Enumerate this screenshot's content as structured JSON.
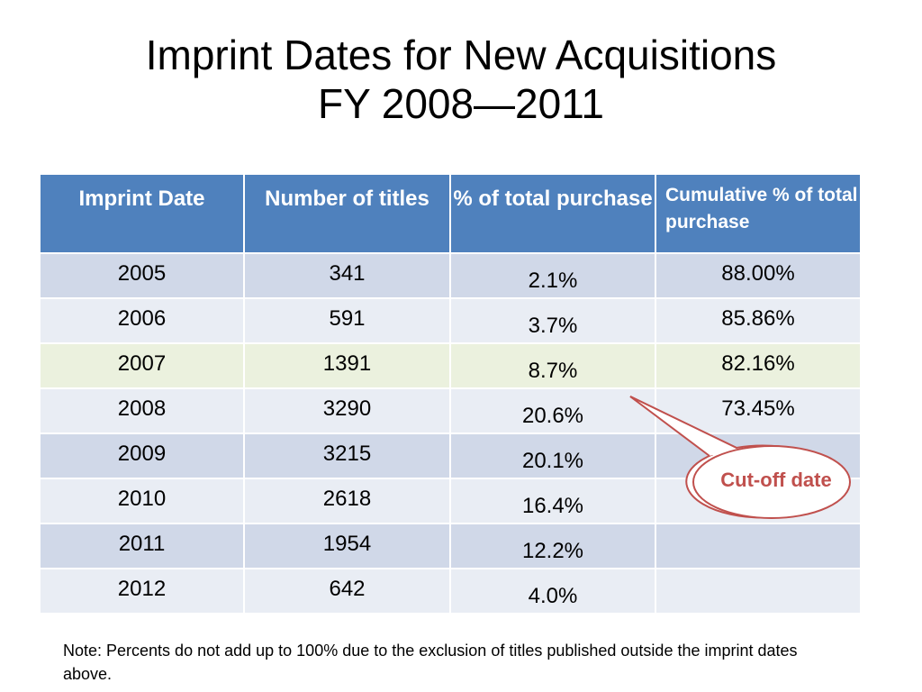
{
  "title": {
    "line1": "Imprint Dates for New Acquisitions",
    "line2": "FY 2008—2011"
  },
  "table": {
    "headers": {
      "imprint_date": "Imprint Date",
      "number_of_titles": "Number of titles",
      "pct_total": "% of total purchase",
      "cumulative": "Cumulative % of total purchase"
    },
    "rows": [
      {
        "year": "2005",
        "titles": "341",
        "pct": "2.1%",
        "cum": "88.00%"
      },
      {
        "year": "2006",
        "titles": "591",
        "pct": "3.7%",
        "cum": "85.86%"
      },
      {
        "year": "2007",
        "titles": "1391",
        "pct": "8.7%",
        "cum": "82.16%"
      },
      {
        "year": "2008",
        "titles": "3290",
        "pct": "20.6%",
        "cum": "73.45%"
      },
      {
        "year": "2009",
        "titles": "3215",
        "pct": "20.1%",
        "cum": ""
      },
      {
        "year": "2010",
        "titles": "2618",
        "pct": "16.4%",
        "cum": ""
      },
      {
        "year": "2011",
        "titles": "1954",
        "pct": "12.2%",
        "cum": ""
      },
      {
        "year": "2012",
        "titles": "642",
        "pct": "4.0%",
        "cum": ""
      }
    ]
  },
  "callout": {
    "label": "Cut-off date",
    "color": "#c0504d"
  },
  "note": "Note: Percents do not add up to 100% due to the exclusion of titles published outside the imprint dates above.",
  "colors": {
    "header_bg": "#4f81bd",
    "row_odd": "#d0d8e8",
    "row_even": "#e9edf4",
    "row_highlight": "#ebf1de"
  }
}
